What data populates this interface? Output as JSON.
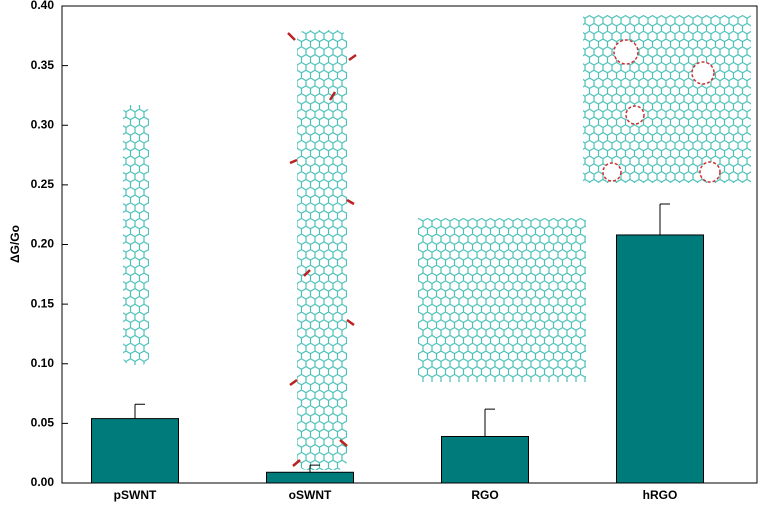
{
  "chart_data": {
    "type": "bar",
    "y_label": "ΔG/Go",
    "categories": [
      "pSWNT",
      "oSWNT",
      "RGO",
      "hRGO"
    ],
    "values": [
      0.054,
      0.009,
      0.039,
      0.208
    ],
    "errors": [
      0.012,
      0.006,
      0.023,
      0.026
    ],
    "color": "#007b7b",
    "ylim": [
      0,
      0.4
    ],
    "yticks": [
      {
        "value": 0,
        "label": "0.00"
      },
      {
        "value": 0.05,
        "label": "0.05"
      },
      {
        "value": 0.1,
        "label": "0.10"
      },
      {
        "value": 0.15,
        "label": "0.15"
      },
      {
        "value": 0.2,
        "label": "0.20"
      },
      {
        "value": 0.25,
        "label": "0.25"
      },
      {
        "value": 0.3,
        "label": "0.30"
      },
      {
        "value": 0.35,
        "label": "0.35"
      },
      {
        "value": 0.4,
        "label": "0.40"
      }
    ]
  }
}
